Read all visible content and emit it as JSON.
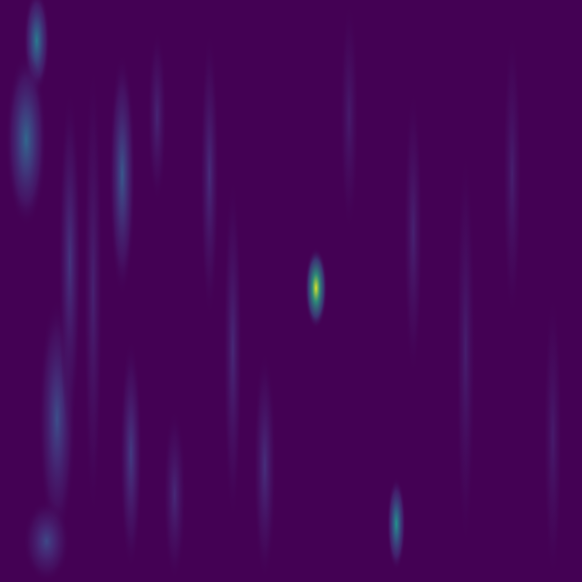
{
  "chart_data": {
    "type": "heatmap",
    "colormap": "viridis",
    "background_color": "#440154",
    "value_range": [
      0,
      1
    ],
    "grid": false,
    "legend": "none",
    "title": "",
    "xlabel": "",
    "ylabel": "",
    "x_range": [
      0,
      1
    ],
    "y_range": [
      0,
      1
    ],
    "features": [
      {
        "name": "bright-streak",
        "x": 0.543,
        "y_center": 0.495,
        "y_extent": 0.14,
        "x_extent": 0.012,
        "peak": 0.95
      },
      {
        "name": "lower-streak",
        "x": 0.681,
        "y_center": 0.9,
        "y_extent": 0.16,
        "x_extent": 0.01,
        "peak": 0.52
      },
      {
        "name": "left-band-top",
        "x": 0.063,
        "y_center": 0.07,
        "y_extent": 0.18,
        "x_extent": 0.014,
        "peak": 0.42
      },
      {
        "name": "left-band-mid",
        "x": 0.045,
        "y_center": 0.24,
        "y_extent": 0.3,
        "x_extent": 0.022,
        "peak": 0.34
      },
      {
        "name": "left-band-low",
        "x": 0.098,
        "y_center": 0.72,
        "y_extent": 0.42,
        "x_extent": 0.02,
        "peak": 0.24
      },
      {
        "name": "left-band-base",
        "x": 0.08,
        "y_center": 0.93,
        "y_extent": 0.14,
        "x_extent": 0.025,
        "peak": 0.22
      },
      {
        "name": "mid-left-band",
        "x": 0.21,
        "y_center": 0.3,
        "y_extent": 0.42,
        "x_extent": 0.014,
        "peak": 0.28
      },
      {
        "name": "mid-left-band-lower",
        "x": 0.225,
        "y_center": 0.78,
        "y_extent": 0.4,
        "x_extent": 0.012,
        "peak": 0.18
      },
      {
        "name": "faint-band-1",
        "x": 0.36,
        "y_center": 0.3,
        "y_extent": 0.5,
        "x_extent": 0.01,
        "peak": 0.13
      },
      {
        "name": "faint-band-2",
        "x": 0.4,
        "y_center": 0.6,
        "y_extent": 0.6,
        "x_extent": 0.01,
        "peak": 0.12
      },
      {
        "name": "faint-band-3",
        "x": 0.455,
        "y_center": 0.8,
        "y_extent": 0.4,
        "x_extent": 0.012,
        "peak": 0.14
      },
      {
        "name": "faint-band-4",
        "x": 0.3,
        "y_center": 0.85,
        "y_extent": 0.3,
        "x_extent": 0.012,
        "peak": 0.12
      },
      {
        "name": "faint-band-5",
        "x": 0.71,
        "y_center": 0.4,
        "y_extent": 0.5,
        "x_extent": 0.01,
        "peak": 0.1
      },
      {
        "name": "faint-band-6",
        "x": 0.8,
        "y_center": 0.6,
        "y_extent": 0.7,
        "x_extent": 0.01,
        "peak": 0.09
      },
      {
        "name": "faint-band-7",
        "x": 0.88,
        "y_center": 0.3,
        "y_extent": 0.5,
        "x_extent": 0.01,
        "peak": 0.09
      },
      {
        "name": "faint-band-8",
        "x": 0.95,
        "y_center": 0.75,
        "y_extent": 0.5,
        "x_extent": 0.01,
        "peak": 0.08
      },
      {
        "name": "faint-band-9",
        "x": 0.16,
        "y_center": 0.5,
        "y_extent": 0.8,
        "x_extent": 0.01,
        "peak": 0.1
      },
      {
        "name": "faint-band-10",
        "x": 0.6,
        "y_center": 0.2,
        "y_extent": 0.4,
        "x_extent": 0.01,
        "peak": 0.08
      },
      {
        "name": "faint-band-11",
        "x": 0.12,
        "y_center": 0.45,
        "y_extent": 0.6,
        "x_extent": 0.012,
        "peak": 0.16
      },
      {
        "name": "faint-band-12",
        "x": 0.27,
        "y_center": 0.2,
        "y_extent": 0.3,
        "x_extent": 0.01,
        "peak": 0.11
      }
    ]
  }
}
